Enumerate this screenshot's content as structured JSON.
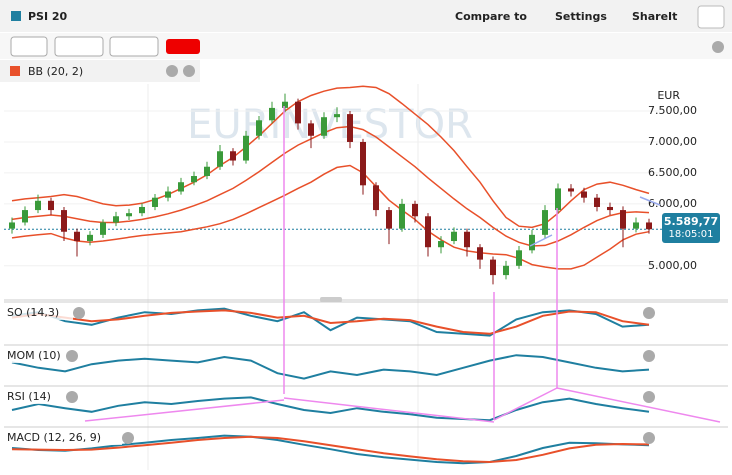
{
  "header": {
    "title": "PSI 20",
    "menu": [
      "Compare to",
      "Settings",
      "ShareIt"
    ],
    "indicator": "BB (20, 2)"
  },
  "chart_data": {
    "type": "candlestick",
    "currency": "EUR",
    "watermark": "EURINVESTOR",
    "last_price": {
      "value": 5589.77,
      "label": "5.589,77"
    },
    "time": "18:05:01",
    "ylim": [
      4480,
      7920
    ],
    "yticks": [
      {
        "value": 5000,
        "label": "5.000,00"
      },
      {
        "value": 6000,
        "label": "6.000,00"
      },
      {
        "value": 6500,
        "label": "6.500,00"
      },
      {
        "value": 7000,
        "label": "7.000,00"
      },
      {
        "value": 7500,
        "label": "7.500,00"
      }
    ],
    "up_color": "#3a9a3a",
    "down_color": "#8b1a1a",
    "candles": [
      [
        5600,
        5780,
        5520,
        5700
      ],
      [
        5700,
        5960,
        5650,
        5900
      ],
      [
        5900,
        6150,
        5850,
        6050
      ],
      [
        6050,
        6100,
        5820,
        5900
      ],
      [
        5900,
        5950,
        5400,
        5550
      ],
      [
        5550,
        5600,
        5150,
        5400
      ],
      [
        5400,
        5560,
        5330,
        5500
      ],
      [
        5500,
        5750,
        5450,
        5700
      ],
      [
        5700,
        5870,
        5640,
        5800
      ],
      [
        5800,
        5920,
        5740,
        5850
      ],
      [
        5850,
        6010,
        5800,
        5950
      ],
      [
        5950,
        6160,
        5900,
        6100
      ],
      [
        6100,
        6280,
        6040,
        6200
      ],
      [
        6200,
        6420,
        6150,
        6350
      ],
      [
        6350,
        6520,
        6300,
        6450
      ],
      [
        6450,
        6680,
        6400,
        6600
      ],
      [
        6600,
        6950,
        6550,
        6850
      ],
      [
        6850,
        6900,
        6620,
        6700
      ],
      [
        6700,
        7180,
        6650,
        7100
      ],
      [
        7100,
        7420,
        7040,
        7350
      ],
      [
        7350,
        7650,
        7300,
        7550
      ],
      [
        7550,
        7780,
        7480,
        7650
      ],
      [
        7650,
        7700,
        7200,
        7300
      ],
      [
        7300,
        7350,
        6900,
        7100
      ],
      [
        7100,
        7480,
        7050,
        7400
      ],
      [
        7400,
        7560,
        7320,
        7450
      ],
      [
        7450,
        7500,
        6900,
        7000
      ],
      [
        7000,
        7050,
        6150,
        6300
      ],
      [
        6300,
        6350,
        5800,
        5900
      ],
      [
        5900,
        5950,
        5350,
        5600
      ],
      [
        5600,
        6080,
        5550,
        6000
      ],
      [
        6000,
        6050,
        5700,
        5800
      ],
      [
        5800,
        5850,
        5150,
        5300
      ],
      [
        5300,
        5480,
        5200,
        5400
      ],
      [
        5400,
        5620,
        5350,
        5550
      ],
      [
        5550,
        5600,
        5150,
        5300
      ],
      [
        5300,
        5350,
        4950,
        5100
      ],
      [
        5100,
        5150,
        4700,
        4850
      ],
      [
        4850,
        5080,
        4780,
        5000
      ],
      [
        5000,
        5320,
        4950,
        5250
      ],
      [
        5250,
        5580,
        5200,
        5500
      ],
      [
        5500,
        5980,
        5450,
        5900
      ],
      [
        5900,
        6330,
        5850,
        6250
      ],
      [
        6250,
        6320,
        6120,
        6200
      ],
      [
        6200,
        6260,
        6020,
        6100
      ],
      [
        6100,
        6160,
        5880,
        5950
      ],
      [
        5950,
        6020,
        5820,
        5900
      ],
      [
        5900,
        5960,
        5300,
        5600
      ],
      [
        5600,
        5780,
        5540,
        5700
      ],
      [
        5700,
        5760,
        5520,
        5590
      ]
    ],
    "bands": [
      {
        "color": "#e8502a",
        "values": [
          5750,
          5780,
          5800,
          5820,
          5800,
          5760,
          5720,
          5700,
          5700,
          5720,
          5750,
          5790,
          5840,
          5900,
          5970,
          6050,
          6150,
          6250,
          6380,
          6520,
          6670,
          6820,
          6950,
          7050,
          7150,
          7230,
          7250,
          7200,
          7080,
          6920,
          6760,
          6600,
          6420,
          6250,
          6080,
          5920,
          5780,
          5620,
          5480,
          5380,
          5320,
          5330,
          5400,
          5500,
          5620,
          5730,
          5810,
          5860,
          5870,
          5860
        ]
      },
      {
        "color": "#e8502a",
        "values": [
          6050,
          6080,
          6100,
          6120,
          6150,
          6120,
          6060,
          6000,
          5970,
          5980,
          6010,
          6070,
          6150,
          6250,
          6350,
          6470,
          6620,
          6750,
          6920,
          7100,
          7300,
          7500,
          7650,
          7750,
          7820,
          7870,
          7880,
          7900,
          7880,
          7780,
          7620,
          7450,
          7280,
          7080,
          6860,
          6600,
          6350,
          6050,
          5780,
          5640,
          5620,
          5680,
          5850,
          6050,
          6230,
          6320,
          6350,
          6300,
          6230,
          6170
        ]
      },
      {
        "color": "#e8502a",
        "values": [
          5450,
          5480,
          5500,
          5520,
          5450,
          5400,
          5380,
          5400,
          5430,
          5460,
          5490,
          5510,
          5530,
          5550,
          5590,
          5630,
          5680,
          5750,
          5840,
          5940,
          6040,
          6140,
          6250,
          6350,
          6480,
          6590,
          6620,
          6500,
          6280,
          6060,
          5900,
          5750,
          5560,
          5420,
          5300,
          5240,
          5210,
          5190,
          5180,
          5120,
          5020,
          4980,
          4950,
          4950,
          5010,
          5140,
          5270,
          5420,
          5510,
          5550
        ]
      }
    ],
    "panels": [
      {
        "label": "SO (14,3)",
        "ylim": [
          0,
          100
        ],
        "series": [
          {
            "color": "#1f7fa0",
            "values": [
              70,
              80,
              55,
              45,
              65,
              80,
              75,
              85,
              90,
              70,
              55,
              80,
              30,
              65,
              60,
              55,
              25,
              20,
              15,
              60,
              80,
              85,
              75,
              40,
              45
            ]
          },
          {
            "color": "#e8502a",
            "values": [
              65,
              75,
              65,
              55,
              60,
              70,
              78,
              82,
              85,
              78,
              65,
              70,
              50,
              55,
              62,
              58,
              40,
              25,
              20,
              40,
              70,
              82,
              80,
              55,
              45
            ]
          }
        ]
      },
      {
        "label": "MOM (10)",
        "ylim": [
          -1000,
          1000
        ],
        "series": [
          {
            "color": "#1f7fa0",
            "values": [
              200,
              -100,
              -300,
              100,
              300,
              400,
              300,
              200,
              500,
              300,
              -400,
              -700,
              -300,
              -500,
              -200,
              -300,
              -500,
              -100,
              300,
              600,
              500,
              200,
              -100,
              -300,
              -200
            ]
          }
        ]
      },
      {
        "label": "RSI (14)",
        "ylim": [
          20,
          80
        ],
        "series": [
          {
            "color": "#1f7fa0",
            "values": [
              45,
              55,
              48,
              42,
              52,
              58,
              55,
              60,
              64,
              66,
              55,
              45,
              40,
              48,
              42,
              38,
              32,
              30,
              28,
              45,
              58,
              64,
              55,
              48,
              42
            ]
          }
        ]
      },
      {
        "label": "MACD (12, 26, 9)",
        "ylim": [
          -500,
          400
        ],
        "series": [
          {
            "color": "#1f7fa0",
            "values": [
              -50,
              -100,
              -120,
              -60,
              20,
              80,
              150,
              200,
              260,
              230,
              150,
              30,
              -80,
              -200,
              -280,
              -340,
              -400,
              -430,
              -400,
              -250,
              -50,
              80,
              70,
              40,
              20
            ]
          },
          {
            "color": "#e8502a",
            "values": [
              -80,
              -90,
              -100,
              -90,
              -40,
              20,
              80,
              150,
              200,
              230,
              200,
              120,
              20,
              -80,
              -180,
              -260,
              -330,
              -380,
              -400,
              -350,
              -220,
              -60,
              30,
              50,
              40
            ]
          }
        ]
      }
    ]
  }
}
